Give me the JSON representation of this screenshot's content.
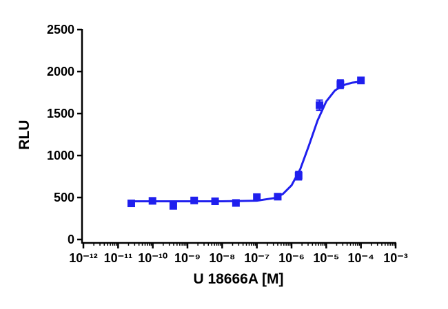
{
  "chart_data": {
    "type": "scatter",
    "x_label": "U 18666A [M]",
    "y_label": "RLU",
    "xscale": "log",
    "xlim": [
      1e-12,
      0.001
    ],
    "xticks": [
      {
        "value": 1e-12,
        "label": "10⁻¹²"
      },
      {
        "value": 1e-11,
        "label": "10⁻¹¹"
      },
      {
        "value": 1e-10,
        "label": "10⁻¹⁰"
      },
      {
        "value": 1e-09,
        "label": "10⁻⁹"
      },
      {
        "value": 1e-08,
        "label": "10⁻⁸"
      },
      {
        "value": 1e-07,
        "label": "10⁻⁷"
      },
      {
        "value": 1e-06,
        "label": "10⁻⁶"
      },
      {
        "value": 1e-05,
        "label": "10⁻⁵"
      },
      {
        "value": 0.0001,
        "label": "10⁻⁴"
      },
      {
        "value": 0.001,
        "label": "10⁻³"
      }
    ],
    "ylim": [
      0,
      2500
    ],
    "yticks": [
      0,
      500,
      1000,
      1500,
      2000,
      2500
    ],
    "color": "#1f1fee",
    "x": [
      2.4e-11,
      9.8e-11,
      3.9e-10,
      1.56e-09,
      6.25e-09,
      2.5e-08,
      1e-07,
      4e-07,
      1.6e-06,
      6.4e-06,
      2.56e-05,
      0.0001
    ],
    "values": [
      430,
      460,
      400,
      465,
      455,
      435,
      505,
      510,
      760,
      1600,
      1850,
      1895
    ],
    "errors": [
      20,
      15,
      25,
      15,
      15,
      15,
      25,
      20,
      50,
      60,
      50,
      15
    ],
    "curve": {
      "x": [
        2.4e-11,
        1e-09,
        1e-08,
        1e-07,
        3.16e-07,
        5.62e-07,
        1e-06,
        1.78e-06,
        3.16e-06,
        5.62e-06,
        1e-05,
        1.78e-05,
        3.16e-05,
        5.62e-05,
        0.0001
      ],
      "values": [
        455,
        455,
        455,
        462,
        493,
        542,
        645,
        837,
        1118,
        1417,
        1644,
        1775,
        1839,
        1868,
        1881
      ]
    }
  }
}
